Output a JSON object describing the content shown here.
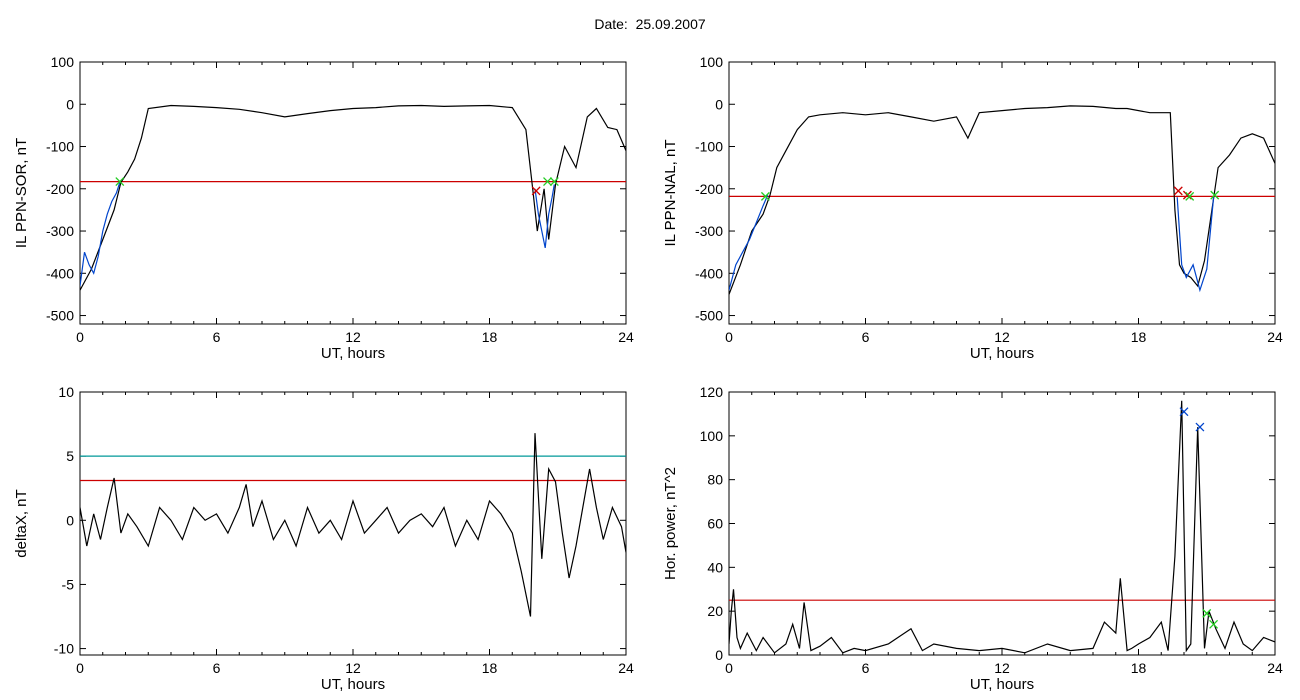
{
  "header": {
    "date_label": "Date:",
    "date_value": "25.09.2007"
  },
  "chart_data": [
    {
      "type": "line",
      "xlabel": "UT, hours",
      "ylabel": "IL PPN-SOR, nT",
      "xlim": [
        0,
        24
      ],
      "ylim": [
        -520,
        100
      ],
      "xticks": [
        0,
        6,
        12,
        18,
        24
      ],
      "yticks": [
        100,
        0,
        -100,
        -200,
        -300,
        -400,
        -500
      ],
      "series": [
        {
          "color": "#000000",
          "x": [
            0,
            0.5,
            1.0,
            1.5,
            1.8,
            2.1,
            2.4,
            2.7,
            3.0,
            4.0,
            5.0,
            6.0,
            7.0,
            8.0,
            9.0,
            10.0,
            11.0,
            12.0,
            13.0,
            14.0,
            15.0,
            16.0,
            17.0,
            18.0,
            19.0,
            19.6,
            19.9,
            20.1,
            20.4,
            20.6,
            20.9,
            21.3,
            21.8,
            22.3,
            22.7,
            23.2,
            23.6,
            24.0
          ],
          "y": [
            -440,
            -390,
            -320,
            -250,
            -185,
            -160,
            -130,
            -80,
            -10,
            -3,
            -5,
            -8,
            -12,
            -20,
            -30,
            -22,
            -15,
            -10,
            -8,
            -4,
            -3,
            -5,
            -4,
            -3,
            -8,
            -60,
            -200,
            -300,
            -200,
            -320,
            -190,
            -100,
            -150,
            -30,
            -10,
            -55,
            -60,
            -110
          ]
        },
        {
          "color": "#0044cc",
          "x": [
            0,
            0.2,
            0.4,
            0.6,
            0.8,
            1.0,
            1.2,
            1.4,
            1.6,
            1.75
          ],
          "y": [
            -430,
            -350,
            -380,
            -400,
            -360,
            -300,
            -260,
            -230,
            -210,
            -185
          ]
        },
        {
          "color": "#0044cc",
          "x": [
            20.0,
            20.15,
            20.3,
            20.45,
            20.6,
            20.75,
            20.85
          ],
          "y": [
            -200,
            -260,
            -300,
            -340,
            -260,
            -220,
            -190
          ]
        }
      ],
      "hlines": [
        {
          "y": -183,
          "color": "#cc0000"
        }
      ],
      "markers": [
        {
          "x": 1.75,
          "y": -183,
          "color": "#22cc22"
        },
        {
          "x": 20.05,
          "y": -205,
          "color": "#cc0000"
        },
        {
          "x": 20.55,
          "y": -183,
          "color": "#22cc22"
        },
        {
          "x": 20.85,
          "y": -183,
          "color": "#22cc22"
        }
      ]
    },
    {
      "type": "line",
      "xlabel": "UT, hours",
      "ylabel": "IL PPN-NAL, nT",
      "xlim": [
        0,
        24
      ],
      "ylim": [
        -520,
        100
      ],
      "xticks": [
        0,
        6,
        12,
        18,
        24
      ],
      "yticks": [
        100,
        0,
        -100,
        -200,
        -300,
        -400,
        -500
      ],
      "series": [
        {
          "color": "#000000",
          "x": [
            0,
            0.5,
            1.0,
            1.5,
            1.8,
            2.1,
            2.5,
            3.0,
            3.5,
            4.0,
            5.0,
            6.0,
            7.0,
            8.0,
            9.0,
            10.0,
            10.5,
            11.0,
            12.0,
            13.0,
            14.0,
            15.0,
            16.0,
            17.0,
            17.5,
            18.5,
            19.4,
            19.6,
            19.8,
            20.0,
            20.3,
            20.6,
            20.9,
            21.2,
            21.5,
            22.0,
            22.5,
            23.0,
            23.5,
            24.0
          ],
          "y": [
            -450,
            -380,
            -300,
            -260,
            -215,
            -150,
            -110,
            -60,
            -30,
            -25,
            -20,
            -25,
            -20,
            -30,
            -40,
            -30,
            -80,
            -20,
            -15,
            -10,
            -8,
            -4,
            -5,
            -10,
            -10,
            -20,
            -20,
            -250,
            -380,
            -400,
            -410,
            -430,
            -370,
            -260,
            -150,
            -120,
            -80,
            -70,
            -80,
            -140
          ]
        },
        {
          "color": "#0044cc",
          "x": [
            0,
            0.3,
            0.6,
            0.9,
            1.2,
            1.5,
            1.7
          ],
          "y": [
            -440,
            -380,
            -350,
            -320,
            -280,
            -240,
            -215
          ]
        },
        {
          "color": "#0044cc",
          "x": [
            19.7,
            19.9,
            20.1,
            20.4,
            20.7,
            21.0,
            21.3
          ],
          "y": [
            -220,
            -380,
            -410,
            -380,
            -440,
            -390,
            -220
          ]
        }
      ],
      "hlines": [
        {
          "y": -218,
          "color": "#cc0000"
        }
      ],
      "markers": [
        {
          "x": 1.6,
          "y": -218,
          "color": "#22cc22"
        },
        {
          "x": 19.75,
          "y": -205,
          "color": "#cc0000"
        },
        {
          "x": 20.15,
          "y": -215,
          "color": "#cc0000"
        },
        {
          "x": 20.25,
          "y": -218,
          "color": "#22cc22"
        },
        {
          "x": 21.35,
          "y": -215,
          "color": "#22cc22"
        }
      ]
    },
    {
      "type": "line",
      "xlabel": "UT, hours",
      "ylabel": "deltaX, nT",
      "xlim": [
        0,
        24
      ],
      "ylim": [
        -10.5,
        10
      ],
      "xticks": [
        0,
        6,
        12,
        18,
        24
      ],
      "yticks": [
        10,
        5,
        0,
        -5,
        -10
      ],
      "series": [
        {
          "color": "#000000",
          "x": [
            0,
            0.3,
            0.6,
            0.9,
            1.2,
            1.5,
            1.8,
            2.1,
            2.5,
            3.0,
            3.5,
            4.0,
            4.5,
            5.0,
            5.5,
            6.0,
            6.5,
            7.0,
            7.3,
            7.6,
            8.0,
            8.5,
            9.0,
            9.5,
            10.0,
            10.5,
            11.0,
            11.5,
            12.0,
            12.5,
            13.0,
            13.5,
            14.0,
            14.5,
            15.0,
            15.5,
            16.0,
            16.5,
            17.0,
            17.5,
            18.0,
            18.5,
            19.0,
            19.4,
            19.8,
            20.0,
            20.3,
            20.6,
            20.9,
            21.2,
            21.5,
            21.8,
            22.1,
            22.4,
            22.7,
            23.0,
            23.4,
            23.8,
            24.0
          ],
          "y": [
            1.0,
            -2.0,
            0.5,
            -1.5,
            1.0,
            3.3,
            -1.0,
            0.5,
            -0.5,
            -2.0,
            1.0,
            0,
            -1.5,
            1.0,
            0,
            0.5,
            -1.0,
            1.0,
            2.8,
            -0.5,
            1.5,
            -1.5,
            0,
            -2.0,
            1.0,
            -1.0,
            0,
            -1.5,
            1.5,
            -1.0,
            0,
            1.0,
            -1.0,
            0,
            0.5,
            -0.5,
            1.0,
            -2.0,
            0,
            -1.5,
            1.5,
            0.5,
            -1.0,
            -4.0,
            -7.5,
            6.8,
            -3.0,
            4.0,
            3.0,
            -1.0,
            -4.5,
            -2.0,
            1.0,
            4.0,
            1.0,
            -1.5,
            1.0,
            -0.5,
            -2.5
          ]
        }
      ],
      "hlines": [
        {
          "y": 5.0,
          "color": "#009999"
        },
        {
          "y": 3.1,
          "color": "#cc0000"
        }
      ],
      "markers": []
    },
    {
      "type": "line",
      "xlabel": "UT, hours",
      "ylabel": "Hor. power, nT^2",
      "xlim": [
        0,
        24
      ],
      "ylim": [
        0,
        120
      ],
      "xticks": [
        0,
        6,
        12,
        18,
        24
      ],
      "yticks": [
        120,
        100,
        80,
        60,
        40,
        20,
        0
      ],
      "series": [
        {
          "color": "#000000",
          "x": [
            0,
            0.1,
            0.2,
            0.35,
            0.5,
            0.8,
            1.2,
            1.5,
            2.0,
            2.5,
            2.8,
            3.1,
            3.3,
            3.6,
            4.0,
            4.5,
            5.0,
            5.5,
            6.0,
            7.0,
            8.0,
            8.5,
            9.0,
            10.0,
            11.0,
            12.0,
            13.0,
            14.0,
            15.0,
            16.0,
            16.5,
            17.0,
            17.2,
            17.5,
            17.7,
            18.0,
            18.5,
            19.0,
            19.3,
            19.6,
            19.9,
            20.1,
            20.3,
            20.6,
            20.9,
            21.1,
            21.4,
            21.8,
            22.2,
            22.6,
            23.0,
            23.5,
            24.0
          ],
          "y": [
            5,
            20,
            30,
            8,
            3,
            10,
            2,
            8,
            1,
            5,
            14,
            3,
            24,
            2,
            4,
            8,
            1,
            3,
            2,
            5,
            12,
            2,
            5,
            3,
            2,
            3,
            1,
            5,
            2,
            3,
            15,
            10,
            35,
            2,
            3,
            5,
            8,
            15,
            2,
            45,
            116,
            2,
            5,
            104,
            3,
            20,
            12,
            3,
            15,
            5,
            2,
            8,
            6
          ]
        }
      ],
      "hlines": [
        {
          "y": 25,
          "color": "#cc0000"
        }
      ],
      "markers": [
        {
          "x": 20.0,
          "y": 111,
          "color": "#0044cc"
        },
        {
          "x": 20.7,
          "y": 104,
          "color": "#0044cc"
        },
        {
          "x": 21.0,
          "y": 19,
          "color": "#22cc22"
        },
        {
          "x": 21.3,
          "y": 14,
          "color": "#22cc22"
        }
      ]
    }
  ]
}
